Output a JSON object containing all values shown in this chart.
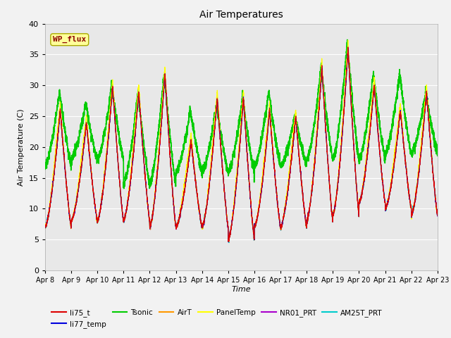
{
  "title": "Air Temperatures",
  "xlabel": "Time",
  "ylabel": "Air Temperature (C)",
  "ylim": [
    0,
    40
  ],
  "background_color": "#e8e8e8",
  "fig_facecolor": "#f2f2f2",
  "series": {
    "li75_t": {
      "color": "#dd0000",
      "lw": 0.8
    },
    "li77_temp": {
      "color": "#0000dd",
      "lw": 0.8
    },
    "Tsonic": {
      "color": "#00cc00",
      "lw": 1.2
    },
    "AirT": {
      "color": "#ff9900",
      "lw": 0.8
    },
    "PanelTemp": {
      "color": "#ffff00",
      "lw": 0.8
    },
    "NR01_PRT": {
      "color": "#aa00cc",
      "lw": 0.8
    },
    "AM25T_PRT": {
      "color": "#00cccc",
      "lw": 0.8
    }
  },
  "annotation": {
    "text": "WP_flux",
    "fontsize": 8,
    "color": "#8b0000",
    "bbox_facecolor": "#ffff99",
    "bbox_edgecolor": "#aaaa00"
  },
  "day_peaks": [
    26,
    24,
    30,
    29,
    32,
    21,
    28,
    28,
    26,
    25,
    33,
    36,
    30,
    26,
    29
  ],
  "day_mins": [
    7,
    8,
    8,
    8,
    7,
    7,
    7,
    5,
    7,
    7,
    8,
    9,
    11,
    10,
    9
  ],
  "tsonic_peaks": [
    29,
    27,
    30,
    29,
    32,
    26,
    27,
    28,
    29,
    25,
    33,
    37,
    32,
    32,
    29
  ],
  "tsonic_mins": [
    17,
    18,
    18,
    14,
    14,
    16,
    16,
    16,
    17,
    17,
    18,
    18,
    18,
    19,
    19
  ],
  "x_tick_labels": [
    "Apr 8",
    "Apr 9",
    "Apr 10",
    "Apr 11",
    "Apr 12",
    "Apr 13",
    "Apr 14",
    "Apr 15",
    "Apr 16",
    "Apr 17",
    "Apr 18",
    "Apr 19",
    "Apr 20",
    "Apr 21",
    "Apr 22",
    "Apr 23"
  ],
  "legend_order": [
    "li75_t",
    "li77_temp",
    "Tsonic",
    "AirT",
    "PanelTemp",
    "NR01_PRT",
    "AM25T_PRT"
  ],
  "legend_ncol": 3,
  "legend_row2": [
    "AM25T_PRT"
  ]
}
